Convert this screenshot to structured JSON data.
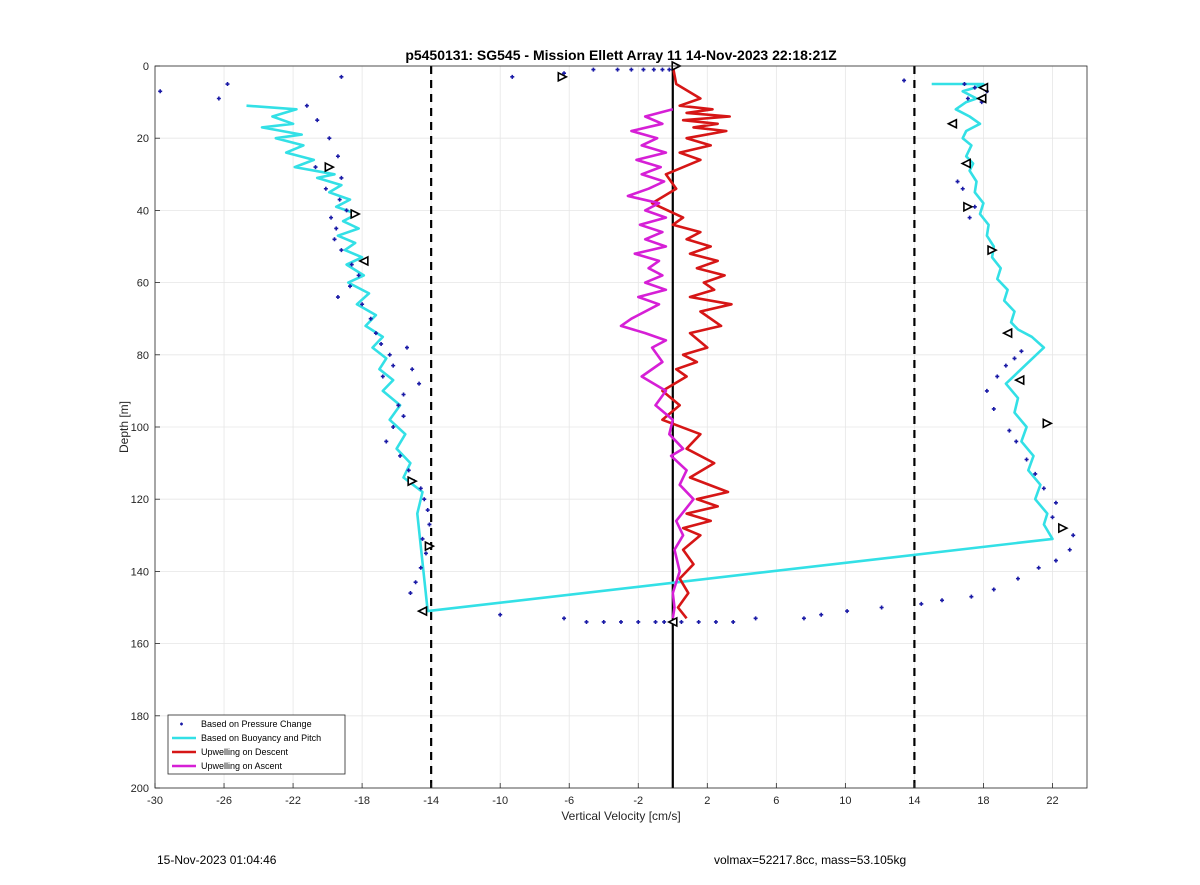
{
  "chart_data": {
    "type": "scatter",
    "title": "p5450131: SG545 - Mission Ellett Array 11 14-Nov-2023 22:18:21Z",
    "xlabel": "Vertical Velocity [cm/s]",
    "ylabel": "Depth [m]",
    "xlim": [
      -30,
      24
    ],
    "ylim": [
      0,
      200
    ],
    "y_reversed": true,
    "x_ticks": [
      -30,
      -26,
      -22,
      -18,
      -14,
      -10,
      -6,
      -2,
      2,
      6,
      10,
      14,
      18,
      22
    ],
    "y_ticks": [
      0,
      20,
      40,
      60,
      80,
      100,
      120,
      140,
      160,
      180,
      200
    ],
    "x_tick_labels": [
      "-30",
      "-26",
      "-22",
      "-18",
      "-14",
      "-10",
      "-6",
      "-2",
      "2",
      "6",
      "10",
      "14",
      "18",
      "22"
    ],
    "y_tick_labels": [
      "0",
      "20",
      "40",
      "60",
      "80",
      "100",
      "120",
      "140",
      "160",
      "180",
      "200"
    ],
    "grid": true,
    "legend_position": "bottom-left",
    "vlines": [
      {
        "x": -14,
        "style": "dashed",
        "color": "#000000"
      },
      {
        "x": 0,
        "style": "solid",
        "color": "#000000"
      },
      {
        "x": 14,
        "style": "dashed",
        "color": "#000000"
      }
    ],
    "series": [
      {
        "name": "Based on Pressure Change",
        "kind": "points",
        "color": "#1a1aa6",
        "x": [
          -29.7,
          -26.3,
          -25.8,
          -19.2,
          -21.2,
          -20.6,
          -19.9,
          -19.4,
          -20.7,
          -19.2,
          -20.1,
          -19.3,
          -18.9,
          -19.8,
          -19.5,
          -19.6,
          -19.2,
          -18.6,
          -18.2,
          -18.7,
          -19.4,
          -18.0,
          -17.5,
          -17.2,
          -16.9,
          -16.4,
          -16.2,
          -16.8,
          -15.4,
          -15.1,
          -14.7,
          -15.6,
          -15.9,
          -15.6,
          -16.2,
          -16.6,
          -15.8,
          -15.3,
          -15.0,
          -14.6,
          -14.4,
          -14.2,
          -14.1,
          -14.5,
          -14.3,
          -14.6,
          -14.9,
          -15.2,
          -10.0,
          -6.3,
          -5.0,
          -4.0,
          -3.0,
          -2.0,
          -1.0,
          -0.5,
          0.5,
          1.5,
          2.5,
          3.5,
          4.8,
          7.6,
          8.6,
          10.1,
          12.1,
          14.4,
          15.6,
          17.3,
          18.6,
          20.0,
          21.2,
          22.2,
          23.0,
          23.2,
          22.6,
          22.0,
          22.2,
          21.5,
          21.0,
          20.5,
          19.9,
          19.5,
          18.6,
          18.2,
          18.8,
          19.3,
          19.8,
          20.2,
          17.2,
          17.5,
          16.8,
          16.5,
          17.9,
          18.2,
          -9.3,
          -6.3,
          -4.6,
          -3.2,
          -2.4,
          -1.7,
          -1.1,
          -0.6,
          -0.2,
          13.4,
          16.9,
          17.5,
          17.1
        ],
        "y": [
          7,
          9,
          5,
          3,
          11,
          15,
          20,
          25,
          28,
          31,
          34,
          37,
          40,
          42,
          45,
          48,
          51,
          55,
          58,
          61,
          64,
          66,
          70,
          74,
          77,
          80,
          83,
          86,
          78,
          84,
          88,
          91,
          94,
          97,
          100,
          104,
          108,
          112,
          115,
          117,
          120,
          123,
          127,
          131,
          135,
          139,
          143,
          146,
          152,
          153,
          154,
          154,
          154,
          154,
          154,
          154,
          154,
          154,
          154,
          154,
          153,
          153,
          152,
          151,
          150,
          149,
          148,
          147,
          145,
          142,
          139,
          137,
          134,
          130,
          128,
          125,
          121,
          117,
          113,
          109,
          104,
          101,
          95,
          90,
          86,
          83,
          81,
          79,
          42,
          39,
          34,
          32,
          10,
          7,
          3,
          2,
          1,
          1,
          1,
          1,
          1,
          1,
          1,
          4,
          5,
          6,
          9
        ]
      },
      {
        "name": "Based on Buoyancy and Pitch",
        "kind": "line",
        "color": "#33e0e6",
        "x": [
          -24.7,
          -21.8,
          -23.2,
          -22.0,
          -23.8,
          -21.5,
          -23.0,
          -21.4,
          -22.4,
          -20.8,
          -21.9,
          -19.6,
          -20.6,
          -19.2,
          -19.9,
          -18.7,
          -19.5,
          -18.3,
          -19.1,
          -18.2,
          -19.4,
          -18.4,
          -19.0,
          -18.0,
          -18.9,
          -17.9,
          -18.8,
          -17.6,
          -18.3,
          -17.2,
          -17.8,
          -16.8,
          -17.4,
          -16.6,
          -17.0,
          -16.2,
          -16.8,
          -15.8,
          -16.4,
          -15.5,
          -16.0,
          -15.2,
          -15.6,
          -14.5,
          -14.8,
          -14.2,
          22.0,
          21.5,
          21.7,
          21.0,
          21.3,
          20.6,
          20.9,
          20.2,
          20.5,
          19.8,
          20.0,
          19.3,
          21.5,
          20.8,
          20.0,
          19.6,
          19.8,
          19.2,
          19.4,
          18.8,
          19.0,
          18.5,
          18.6,
          18.2,
          18.3,
          17.8,
          18.0,
          17.5,
          17.6,
          17.2,
          17.4,
          17.0,
          17.3,
          16.8,
          17.0,
          17.8,
          17.2,
          16.4,
          17.0,
          17.6,
          16.8,
          17.5,
          18.0,
          17.6,
          16.4,
          15.0
        ],
        "y": [
          11,
          12,
          14,
          16,
          17,
          19,
          20,
          22,
          24,
          26,
          28,
          30,
          31,
          33,
          35,
          37,
          39,
          41,
          43,
          45,
          47,
          49,
          51,
          53,
          55,
          58,
          60,
          63,
          66,
          69,
          72,
          75,
          78,
          81,
          84,
          87,
          90,
          94,
          98,
          102,
          106,
          110,
          114,
          118,
          124,
          151,
          131,
          127,
          124,
          120,
          116,
          112,
          108,
          104,
          100,
          96,
          92,
          88,
          78,
          75,
          73,
          71,
          68,
          65,
          62,
          59,
          56,
          53,
          50,
          47,
          44,
          41,
          38,
          35,
          32,
          29,
          27,
          25,
          22,
          20,
          18,
          16,
          14,
          12,
          10,
          9,
          7,
          6,
          5,
          5,
          5,
          5
        ]
      },
      {
        "name": "Upwelling on Descent",
        "kind": "line",
        "color": "#d61616",
        "x": [
          0.0,
          0.2,
          1.6,
          0.4,
          2.3,
          0.8,
          3.3,
          0.6,
          2.6,
          1.2,
          3.1,
          0.8,
          2.2,
          0.4,
          1.6,
          -0.4,
          0.2,
          -1.2,
          0.6,
          0.0,
          1.6,
          0.8,
          2.2,
          1.0,
          2.6,
          1.4,
          3.0,
          1.8,
          2.4,
          1.0,
          3.4,
          1.6,
          2.8,
          1.0,
          2.0,
          0.6,
          1.4,
          0.2,
          0.8,
          -0.6,
          0.4,
          -0.6,
          1.6,
          0.8,
          2.4,
          1.0,
          3.2,
          1.4,
          2.6,
          0.8,
          2.2,
          0.6,
          1.6,
          0.6,
          1.2,
          0.4,
          0.9,
          0.3,
          0.8
        ],
        "y": [
          0,
          5,
          9,
          11,
          12,
          13,
          14,
          15,
          16,
          17,
          18,
          20,
          22,
          24,
          26,
          30,
          34,
          38,
          42,
          44,
          46,
          48,
          50,
          52,
          54,
          56,
          58,
          60,
          62,
          64,
          66,
          68,
          72,
          74,
          78,
          80,
          82,
          84,
          86,
          90,
          94,
          98,
          102,
          106,
          110,
          114,
          118,
          120,
          122,
          124,
          126,
          128,
          130,
          134,
          138,
          142,
          146,
          150,
          153
        ]
      },
      {
        "name": "Upwelling on Ascent",
        "kind": "line",
        "color": "#d61fd6",
        "x": [
          0.0,
          -1.6,
          -0.6,
          -2.4,
          -0.9,
          -1.8,
          -0.4,
          -2.1,
          -0.7,
          -1.8,
          -0.5,
          -1.4,
          -2.6,
          -0.8,
          -1.6,
          -0.4,
          -1.9,
          -0.6,
          -1.6,
          -0.4,
          -2.2,
          -0.8,
          -1.4,
          -0.6,
          -1.6,
          -0.4,
          -2.0,
          -0.8,
          -2.4,
          -3.0,
          -1.6,
          -0.4,
          -1.2,
          -0.6,
          -1.8,
          -0.4,
          -1.0,
          0.0,
          -0.2,
          0.6,
          -0.1,
          0.8,
          0.4,
          1.2,
          0.2,
          0.6,
          0.1,
          0.4,
          0.0,
          0.1,
          0.0
        ],
        "y": [
          12,
          14,
          16,
          18,
          20,
          22,
          24,
          26,
          28,
          30,
          32,
          34,
          36,
          38,
          40,
          42,
          44,
          46,
          48,
          50,
          52,
          54,
          56,
          58,
          60,
          62,
          64,
          66,
          70,
          72,
          74,
          76,
          78,
          82,
          86,
          90,
          94,
          98,
          102,
          106,
          108,
          112,
          116,
          120,
          126,
          130,
          134,
          140,
          146,
          150,
          153
        ]
      }
    ]
  },
  "footer": {
    "left_text": "15-Nov-2023 01:04:46",
    "right_text": "volmax=52217.8cc, mass=53.105kg"
  }
}
